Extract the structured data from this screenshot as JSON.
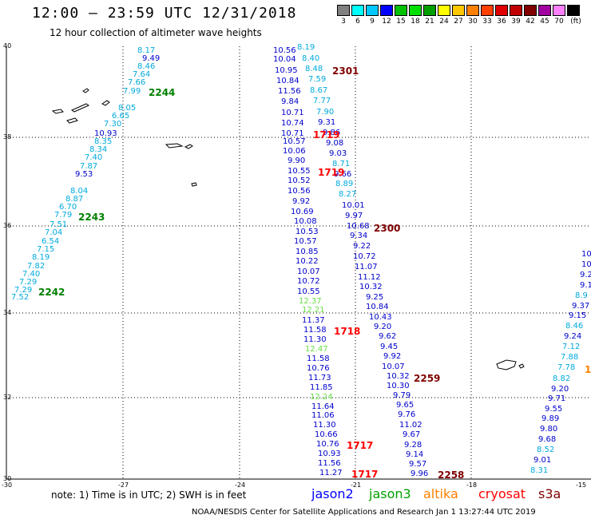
{
  "title": "12:00 — 23:59 UTC 12/31/2018",
  "subtitle": "12 hour collection of altimeter wave heights",
  "colorbar": {
    "colors": [
      "#808080",
      "#00ffff",
      "#00c8ff",
      "#0000ff",
      "#00c000",
      "#00e000",
      "#00a000",
      "#ffff00",
      "#ffc800",
      "#ff8000",
      "#ff4000",
      "#e00000",
      "#c00000",
      "#800000",
      "#a000a0",
      "#ff80ff",
      "#000000"
    ],
    "labels": [
      "3",
      "6",
      "9",
      "12",
      "15",
      "18",
      "21",
      "24",
      "27",
      "30",
      "33",
      "36",
      "39",
      "42",
      "45",
      "70",
      "(ft)"
    ]
  },
  "axes": {
    "lat_labels": [
      "40",
      "38",
      "36",
      "34",
      "32",
      "30"
    ],
    "lon_labels": [
      "-30",
      "-27",
      "-24",
      "-21",
      "-18",
      "-15"
    ]
  },
  "tracks": [
    {
      "color": "#00aadd",
      "items": [
        [
          "8.17",
          "#00aadd"
        ],
        [
          "9.49",
          "#0000cc"
        ],
        [
          "8.46",
          "#00aadd"
        ],
        [
          "7.64",
          "#00aadd"
        ],
        [
          "7.66",
          "#00aadd"
        ],
        [
          "7.99",
          "#00aadd"
        ],
        [
          "8.05",
          "#00aadd"
        ],
        [
          "6.65",
          "#00aadd"
        ],
        [
          "7.30",
          "#00aadd"
        ],
        [
          "10.93",
          "#0000cc"
        ],
        [
          "8.35",
          "#00aadd"
        ],
        [
          "8.34",
          "#00aadd"
        ],
        [
          "7.40",
          "#00aadd"
        ],
        [
          "7.87",
          "#00aadd"
        ],
        [
          "9.53",
          "#0000cc"
        ],
        [
          "8.04",
          "#00aadd"
        ],
        [
          "8.87",
          "#00aadd"
        ],
        [
          "6.70",
          "#00aadd"
        ],
        [
          "7.79",
          "#00aadd"
        ],
        [
          "7.51",
          "#00aadd"
        ],
        [
          "7.04",
          "#00aadd"
        ],
        [
          "6.54",
          "#00aadd"
        ],
        [
          "7.15",
          "#00aadd"
        ],
        [
          "8.19",
          "#00aadd"
        ],
        [
          "7.82",
          "#00aadd"
        ],
        [
          "7.40",
          "#00aadd"
        ],
        [
          "7.29",
          "#00aadd"
        ],
        [
          "7.29",
          "#00aadd"
        ],
        [
          "7.52",
          "#00aadd"
        ]
      ]
    },
    {
      "items": [
        [
          "10.56",
          "#0000cc"
        ],
        [
          "10.04",
          "#0000cc"
        ],
        [
          "10.95",
          "#0000cc"
        ],
        [
          "10.84",
          "#0000cc"
        ],
        [
          "11.56",
          "#0000cc"
        ],
        [
          "9.84",
          "#0000cc"
        ],
        [
          "10.71",
          "#0000cc"
        ],
        [
          "10.74",
          "#0000cc"
        ],
        [
          "10.71",
          "#0000cc"
        ],
        [
          "10.57",
          "#0000cc"
        ],
        [
          "10.06",
          "#0000cc"
        ],
        [
          "9.90",
          "#0000cc"
        ],
        [
          "10.55",
          "#0000cc"
        ],
        [
          "10.52",
          "#0000cc"
        ],
        [
          "10.56",
          "#0000cc"
        ],
        [
          "9.92",
          "#0000cc"
        ],
        [
          "10.69",
          "#0000cc"
        ],
        [
          "10.08",
          "#0000cc"
        ],
        [
          "10.53",
          "#0000cc"
        ],
        [
          "10.57",
          "#0000cc"
        ],
        [
          "10.85",
          "#0000cc"
        ],
        [
          "10.22",
          "#0000cc"
        ],
        [
          "10.07",
          "#0000cc"
        ],
        [
          "10.72",
          "#0000cc"
        ],
        [
          "10.55",
          "#0000cc"
        ],
        [
          "12.37",
          "#66dd44"
        ],
        [
          "12.21",
          "#66dd44"
        ],
        [
          "11.37",
          "#0000cc"
        ],
        [
          "11.58",
          "#0000cc"
        ],
        [
          "11.30",
          "#0000cc"
        ],
        [
          "12.47",
          "#66dd44"
        ],
        [
          "11.58",
          "#0000cc"
        ],
        [
          "10.76",
          "#0000cc"
        ],
        [
          "11.73",
          "#0000cc"
        ],
        [
          "11.85",
          "#0000cc"
        ],
        [
          "12.24",
          "#66dd44"
        ],
        [
          "11.64",
          "#0000cc"
        ],
        [
          "11.06",
          "#0000cc"
        ],
        [
          "11.30",
          "#0000cc"
        ],
        [
          "10.66",
          "#0000cc"
        ],
        [
          "10.76",
          "#0000cc"
        ],
        [
          "10.93",
          "#0000cc"
        ],
        [
          "11.56",
          "#0000cc"
        ],
        [
          "11.27",
          "#0000cc"
        ]
      ]
    },
    {
      "items": [
        [
          "8.19",
          "#00aadd"
        ],
        [
          "8.40",
          "#00aadd"
        ],
        [
          "8.48",
          "#00aadd"
        ],
        [
          "7.59",
          "#00aadd"
        ],
        [
          "8.67",
          "#00aadd"
        ],
        [
          "7.77",
          "#00aadd"
        ],
        [
          "7.90",
          "#00aadd"
        ],
        [
          "9.31",
          "#0000cc"
        ],
        [
          "9.86",
          "#0000cc"
        ],
        [
          "9.08",
          "#0000cc"
        ],
        [
          "9.03",
          "#0000cc"
        ],
        [
          "8.71",
          "#00aadd"
        ],
        [
          "9.66",
          "#0000cc"
        ],
        [
          "8.89",
          "#00aadd"
        ],
        [
          "8.27",
          "#00aadd"
        ],
        [
          "10.01",
          "#0000cc"
        ],
        [
          "9.97",
          "#0000cc"
        ],
        [
          "10.68",
          "#0000cc"
        ],
        [
          "9.34",
          "#0000cc"
        ],
        [
          "9.22",
          "#0000cc"
        ],
        [
          "10.72",
          "#0000cc"
        ],
        [
          "11.07",
          "#0000cc"
        ],
        [
          "11.12",
          "#0000cc"
        ],
        [
          "10.32",
          "#0000cc"
        ],
        [
          "9.25",
          "#0000cc"
        ],
        [
          "10.84",
          "#0000cc"
        ],
        [
          "10.43",
          "#0000cc"
        ],
        [
          "9.20",
          "#0000cc"
        ],
        [
          "9.62",
          "#0000cc"
        ],
        [
          "9.45",
          "#0000cc"
        ],
        [
          "9.92",
          "#0000cc"
        ],
        [
          "10.07",
          "#0000cc"
        ],
        [
          "10.32",
          "#0000cc"
        ],
        [
          "10.30",
          "#0000cc"
        ],
        [
          "9.79",
          "#0000cc"
        ],
        [
          "9.65",
          "#0000cc"
        ],
        [
          "9.76",
          "#0000cc"
        ],
        [
          "11.02",
          "#0000cc"
        ],
        [
          "9.67",
          "#0000cc"
        ],
        [
          "9.28",
          "#0000cc"
        ],
        [
          "9.14",
          "#0000cc"
        ],
        [
          "9.57",
          "#0000cc"
        ],
        [
          "9.96",
          "#0000cc"
        ]
      ]
    },
    {
      "items": [
        [
          "10",
          "#0000cc"
        ],
        [
          "10",
          "#0000cc"
        ],
        [
          "9.2",
          "#0000cc"
        ],
        [
          "9.1",
          "#0000cc"
        ],
        [
          "8.9",
          "#00aadd"
        ],
        [
          "9.37",
          "#0000cc"
        ],
        [
          "9.15",
          "#0000cc"
        ],
        [
          "8.46",
          "#00aadd"
        ],
        [
          "9.24",
          "#0000cc"
        ],
        [
          "7.12",
          "#00aadd"
        ],
        [
          "7.88",
          "#00aadd"
        ],
        [
          "7.78",
          "#00aadd"
        ],
        [
          "8.82",
          "#00aadd"
        ],
        [
          "9.20",
          "#0000cc"
        ],
        [
          "9.71",
          "#0000cc"
        ],
        [
          "9.55",
          "#0000cc"
        ],
        [
          "9.89",
          "#0000cc"
        ],
        [
          "9.80",
          "#0000cc"
        ],
        [
          "9.68",
          "#0000cc"
        ],
        [
          "8.52",
          "#00aadd"
        ],
        [
          "9.01",
          "#0000cc"
        ],
        [
          "8.31",
          "#00aadd"
        ]
      ]
    }
  ],
  "time_tags": [
    {
      "text": "2244",
      "color": "#008000"
    },
    {
      "text": "2243",
      "color": "#008000"
    },
    {
      "text": "2242",
      "color": "#008000"
    },
    {
      "text": "2301",
      "color": "#800000"
    },
    {
      "text": "1719",
      "color": "#ff0000"
    },
    {
      "text": "1719",
      "color": "#ff0000"
    },
    {
      "text": "2300",
      "color": "#800000"
    },
    {
      "text": "1718",
      "color": "#ff0000"
    },
    {
      "text": "2259",
      "color": "#800000"
    },
    {
      "text": "1717",
      "color": "#ff0000"
    },
    {
      "text": "1717",
      "color": "#ff0000"
    },
    {
      "text": "2258",
      "color": "#800000"
    },
    {
      "text": "1",
      "color": "#ff8000"
    }
  ],
  "note": "note:  1) Time is in UTC;  2) SWH is in feet",
  "satellites": [
    {
      "name": "jason2",
      "color": "#0000ff"
    },
    {
      "name": "jason3",
      "color": "#00a000"
    },
    {
      "name": "altika",
      "color": "#ff8000"
    },
    {
      "name": "cryosat",
      "color": "#ff0000"
    },
    {
      "name": "s3a",
      "color": "#800000"
    }
  ],
  "footer": "NOAA/NESDIS Center for Satellite Applications and Research    Jan  1 13:27:44 UTC 2019"
}
